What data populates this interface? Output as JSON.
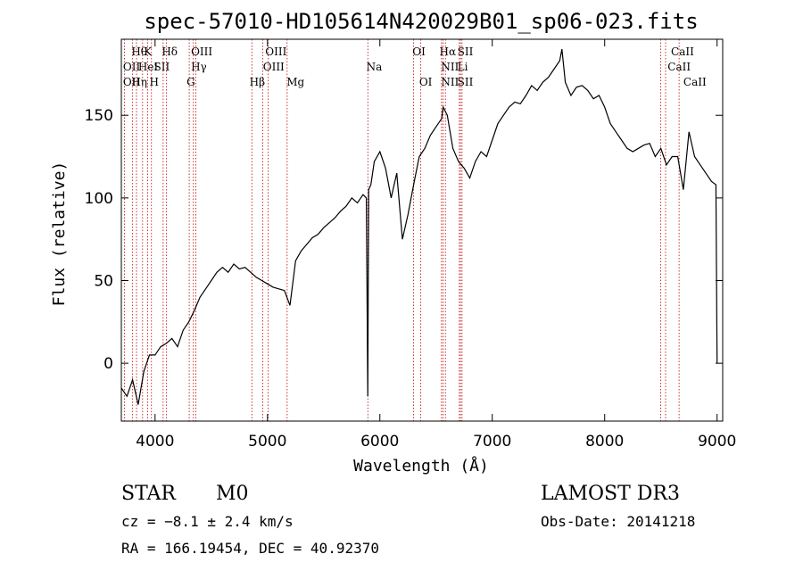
{
  "chart_data": {
    "type": "line",
    "title": "spec-57010-HD105614N420029B01_sp06-023.fits",
    "xlabel": "Wavelength (Å)",
    "ylabel": "Flux (relative)",
    "xlim": [
      3700,
      9050
    ],
    "ylim": [
      -35,
      196
    ],
    "xticks": [
      4000,
      5000,
      6000,
      7000,
      8000,
      9000
    ],
    "yticks": [
      0,
      50,
      100,
      150
    ],
    "grid": false,
    "series": [
      {
        "color": "#000000",
        "x": [
          3700,
          3750,
          3800,
          3850,
          3900,
          3950,
          4000,
          4050,
          4100,
          4150,
          4200,
          4250,
          4300,
          4350,
          4400,
          4450,
          4500,
          4550,
          4600,
          4650,
          4700,
          4750,
          4800,
          4850,
          4900,
          4950,
          5000,
          5050,
          5100,
          5150,
          5200,
          5250,
          5300,
          5350,
          5400,
          5450,
          5500,
          5550,
          5600,
          5650,
          5700,
          5750,
          5800,
          5850,
          5880,
          5892,
          5900,
          5920,
          5950,
          6000,
          6050,
          6100,
          6150,
          6200,
          6250,
          6300,
          6350,
          6400,
          6450,
          6500,
          6550,
          6563,
          6600,
          6650,
          6700,
          6750,
          6800,
          6850,
          6900,
          6950,
          7000,
          7050,
          7100,
          7150,
          7200,
          7250,
          7300,
          7350,
          7400,
          7450,
          7500,
          7550,
          7600,
          7620,
          7650,
          7700,
          7750,
          7800,
          7850,
          7900,
          7950,
          8000,
          8050,
          8100,
          8150,
          8200,
          8250,
          8300,
          8350,
          8400,
          8450,
          8500,
          8550,
          8600,
          8650,
          8700,
          8750,
          8800,
          8850,
          8900,
          8950,
          8990,
          9000
        ],
        "y": [
          -15,
          -20,
          -10,
          -25,
          -5,
          5,
          5,
          10,
          12,
          15,
          10,
          20,
          25,
          32,
          40,
          45,
          50,
          55,
          58,
          55,
          60,
          57,
          58,
          55,
          52,
          50,
          48,
          46,
          45,
          44,
          35,
          62,
          68,
          72,
          76,
          78,
          82,
          85,
          88,
          92,
          95,
          100,
          97,
          102,
          100,
          -20,
          105,
          108,
          122,
          128,
          118,
          100,
          115,
          75,
          90,
          108,
          125,
          130,
          138,
          143,
          148,
          155,
          150,
          130,
          122,
          118,
          112,
          122,
          128,
          125,
          135,
          145,
          150,
          155,
          158,
          157,
          162,
          168,
          165,
          170,
          173,
          178,
          183,
          190,
          170,
          162,
          167,
          168,
          165,
          160,
          162,
          155,
          145,
          140,
          135,
          130,
          128,
          130,
          132,
          133,
          125,
          130,
          120,
          125,
          125,
          105,
          140,
          125,
          120,
          115,
          110,
          108,
          0
        ]
      }
    ],
    "reference_lines": [
      {
        "x": 3727,
        "labels": [
          "OII"
        ]
      },
      {
        "x": 3798,
        "labels": [
          "Hθ"
        ]
      },
      {
        "x": 3835,
        "labels": [
          "Hη"
        ]
      },
      {
        "x": 3889,
        "labels": [
          "HeI"
        ]
      },
      {
        "x": 3934,
        "labels": [
          "K"
        ]
      },
      {
        "x": 3968,
        "labels": [
          "H"
        ]
      },
      {
        "x": 4072,
        "labels": [
          "SII"
        ]
      },
      {
        "x": 4102,
        "labels": [
          "Hδ"
        ]
      },
      {
        "x": 4304,
        "labels": [
          "G"
        ]
      },
      {
        "x": 4341,
        "labels": [
          "Hγ"
        ]
      },
      {
        "x": 4363,
        "labels": [
          "OIII"
        ]
      },
      {
        "x": 4861,
        "labels": [
          "Hβ"
        ]
      },
      {
        "x": 4959,
        "labels": [
          "OIII"
        ]
      },
      {
        "x": 5007,
        "labels": [
          "OIII"
        ]
      },
      {
        "x": 5175,
        "labels": [
          "Mg"
        ]
      },
      {
        "x": 5893,
        "labels": [
          "Na"
        ]
      },
      {
        "x": 6300,
        "labels": [
          "OI"
        ]
      },
      {
        "x": 6364,
        "labels": [
          "OI"
        ]
      },
      {
        "x": 6548,
        "labels": [
          "NII"
        ]
      },
      {
        "x": 6563,
        "labels": [
          "Hα"
        ]
      },
      {
        "x": 6583,
        "labels": [
          "NII"
        ]
      },
      {
        "x": 6707,
        "labels": [
          "Li"
        ]
      },
      {
        "x": 6717,
        "labels": [
          "SII"
        ]
      },
      {
        "x": 6731,
        "labels": [
          "SII"
        ]
      },
      {
        "x": 8498,
        "labels": [
          "CaII"
        ]
      },
      {
        "x": 8542,
        "labels": [
          "CaII"
        ]
      },
      {
        "x": 8662,
        "labels": [
          "CaII"
        ]
      }
    ],
    "line_label_rows": [
      {
        "row": 0,
        "items": [
          {
            "text": "Hθ",
            "x": 3790
          },
          {
            "text": "K",
            "x": 3900
          },
          {
            "text": "Hδ",
            "x": 4060
          },
          {
            "text": "OIII",
            "x": 4320
          },
          {
            "text": "OIII",
            "x": 4980
          },
          {
            "text": "OI",
            "x": 6290
          },
          {
            "text": "Hα",
            "x": 6530
          },
          {
            "text": "SII",
            "x": 6690
          },
          {
            "text": "CaII",
            "x": 8590
          }
        ]
      },
      {
        "row": 1,
        "items": [
          {
            "text": "OII",
            "x": 3715
          },
          {
            "text": "HeI",
            "x": 3850
          },
          {
            "text": "SII",
            "x": 3990
          },
          {
            "text": "Hγ",
            "x": 4320
          },
          {
            "text": "OIII",
            "x": 4960
          },
          {
            "text": "Na",
            "x": 5880
          },
          {
            "text": "NII",
            "x": 6545
          },
          {
            "text": "Li",
            "x": 6690
          },
          {
            "text": "CaII",
            "x": 8560
          }
        ]
      },
      {
        "row": 2,
        "items": [
          {
            "text": "OII",
            "x": 3715
          },
          {
            "text": "Hη",
            "x": 3790
          },
          {
            "text": "H",
            "x": 3950
          },
          {
            "text": "G",
            "x": 4280
          },
          {
            "text": "Hβ",
            "x": 4840
          },
          {
            "text": "Mg",
            "x": 5170
          },
          {
            "text": "OI",
            "x": 6350
          },
          {
            "text": "NII",
            "x": 6545
          },
          {
            "text": "SII",
            "x": 6690
          },
          {
            "text": "CaII",
            "x": 8700
          }
        ]
      }
    ]
  },
  "info": {
    "object_class": "STAR",
    "subclass": "M0",
    "survey": "LAMOST DR3",
    "redshift_line": "cz = −8.1 ± 2.4 km/s",
    "obs_date": "Obs-Date: 20141218",
    "coords": "RA = 166.19454, DEC =  40.92370"
  }
}
